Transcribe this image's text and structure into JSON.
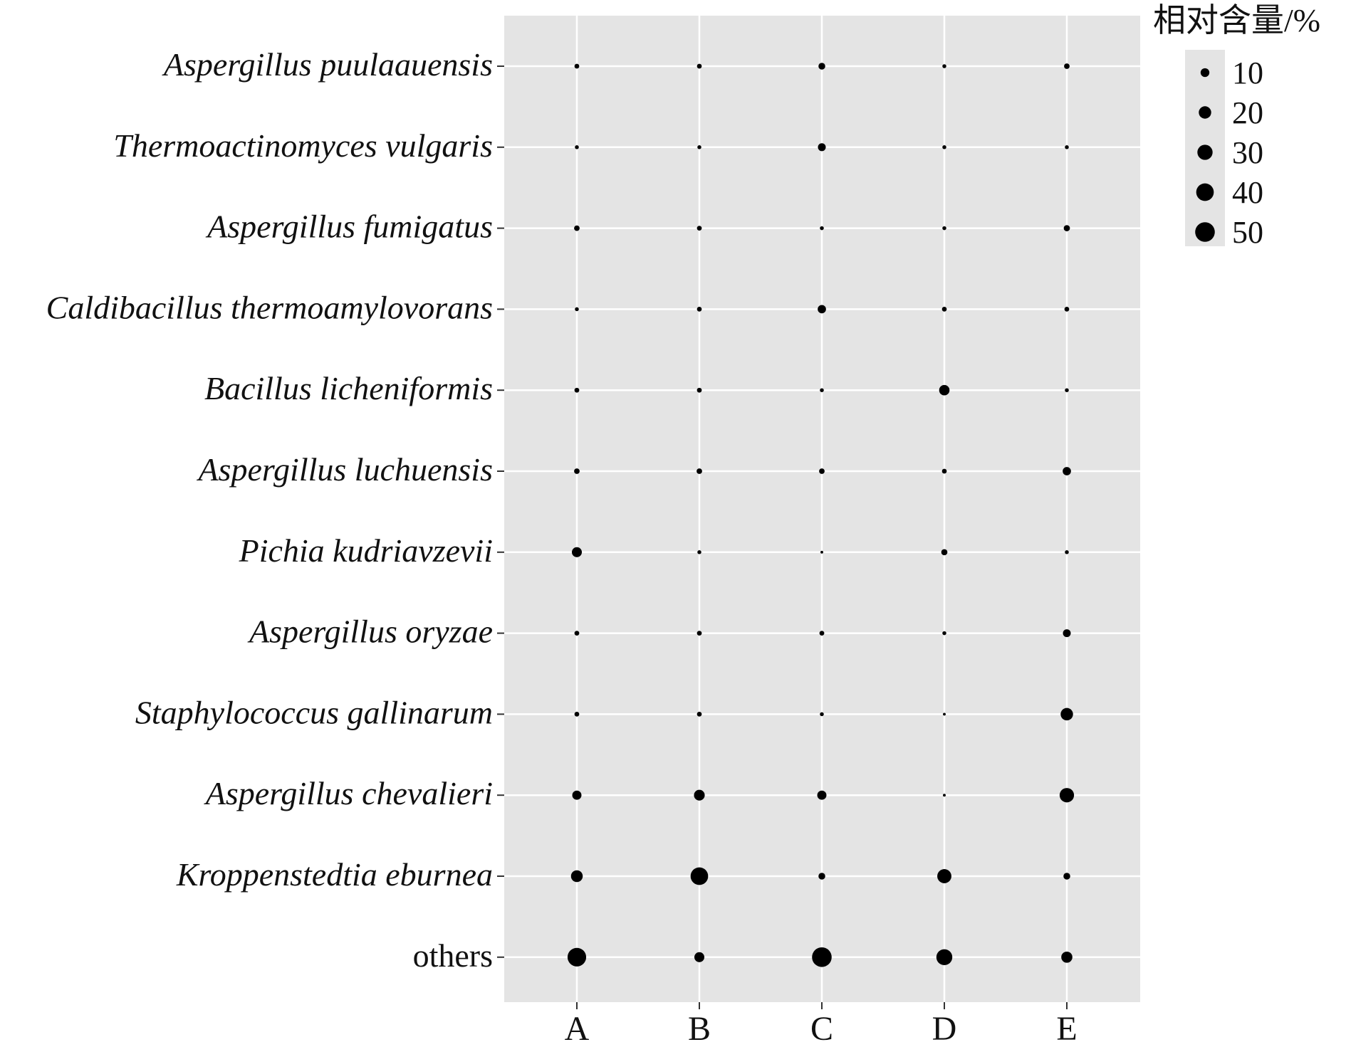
{
  "colors": {
    "panel": "#e4e4e4",
    "grid": "#ffffff",
    "dot": "#000000",
    "text": "#111111"
  },
  "chart_data": {
    "type": "scatter",
    "subtype": "bubble",
    "title": "",
    "xlabel": "",
    "ylabel": "",
    "x_categories": [
      "A",
      "B",
      "C",
      "D",
      "E"
    ],
    "y_categories": [
      "Aspergillus puulaauensis",
      "Thermoactinomyces vulgaris",
      "Aspergillus fumigatus",
      "Caldibacillus thermoamylovorans",
      "Bacillus licheniformis",
      "Aspergillus luchuensis",
      "Pichia kudriavzevii",
      "Aspergillus oryzae",
      "Staphylococcus gallinarum",
      "Aspergillus chevalieri",
      "Kroppenstedtia eburnea",
      "others"
    ],
    "italic_exclusions": [
      "others"
    ],
    "size_variable": "相对含量/%",
    "values": [
      [
        3,
        3,
        6,
        2,
        4
      ],
      [
        2,
        2,
        8,
        2,
        2
      ],
      [
        4,
        3,
        2,
        2,
        5
      ],
      [
        2,
        3,
        9,
        3,
        3
      ],
      [
        3,
        3,
        2,
        14,
        2
      ],
      [
        4,
        4,
        4,
        3,
        9
      ],
      [
        13,
        2,
        1,
        5,
        2
      ],
      [
        3,
        3,
        3,
        2,
        8
      ],
      [
        3,
        3,
        2,
        1,
        20
      ],
      [
        11,
        15,
        11,
        1,
        27
      ],
      [
        18,
        40,
        6,
        26,
        6
      ],
      [
        45,
        13,
        50,
        33,
        16
      ]
    ],
    "legend": {
      "title": "相对含量/%",
      "breaks": [
        10,
        20,
        30,
        40,
        50
      ],
      "position": "top-right"
    },
    "grid": true
  }
}
